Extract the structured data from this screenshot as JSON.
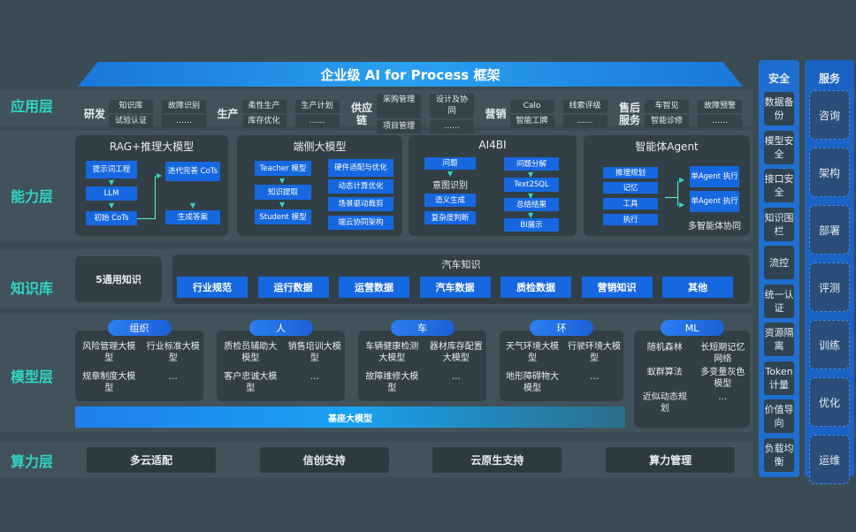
{
  "title": "企业级 AI for Process 框架",
  "layers": {
    "app": "应用层",
    "capability": "能力层",
    "knowledge": "知识库",
    "model": "模型层",
    "compute": "算力层"
  },
  "app_groups": [
    {
      "name": "研发",
      "items": [
        "知识库",
        "故障识别",
        "试验认证",
        "……"
      ]
    },
    {
      "name": "生产",
      "items": [
        "柔性生产",
        "生产计划",
        "库存优化",
        "……"
      ]
    },
    {
      "name": "供应链",
      "items": [
        "采购管理",
        "设计及协同",
        "项目管理",
        "……"
      ]
    },
    {
      "name": "营销",
      "items": [
        "Calo",
        "线索评级",
        "智能工牌",
        "……"
      ]
    },
    {
      "name": "售后服务",
      "items": [
        "车智见",
        "故障预警",
        "智能诊修",
        "……"
      ]
    }
  ],
  "capability": {
    "rag": {
      "title": "RAG+推理大模型",
      "items": [
        "提示词工程",
        "LLM",
        "初始 CoTs",
        "迭代完善 CoTs",
        "生成答案"
      ]
    },
    "edge": {
      "title": "端侧大模型",
      "left": [
        "Teacher 模型",
        "知识提取",
        "Student 模型"
      ],
      "right": [
        "硬件适配与优化",
        "动态计算优化",
        "场景驱动裁剪",
        "端云协同架构"
      ]
    },
    "ai4bi": {
      "title": "AI4BI",
      "left": [
        "问题",
        "意图识别",
        "语义生成",
        "复杂度判断"
      ],
      "right": [
        "问题分解",
        "Text2SQL",
        "总结结果",
        "BI展示"
      ]
    },
    "agent": {
      "title": "智能体Agent",
      "left": [
        "推理规划",
        "记忆",
        "工具",
        "执行"
      ],
      "right": [
        "单Agent 执行",
        "单Agent 执行"
      ],
      "caption": "多智能体协同"
    }
  },
  "knowledge": {
    "general": "5通用知识",
    "auto_title": "汽车知识",
    "auto_items": [
      "行业规范",
      "运行数据",
      "运营数据",
      "汽车数据",
      "质检数据",
      "营销知识",
      "其他"
    ]
  },
  "models": [
    {
      "tag": "组织",
      "items": [
        "风险管理大模型",
        "行业标准大模型",
        "规章制度大模型",
        "…"
      ]
    },
    {
      "tag": "人",
      "items": [
        "质检员辅助大模型",
        "销售培训大模型",
        "客户忠诚大模型",
        "…"
      ]
    },
    {
      "tag": "车",
      "items": [
        "车辆健康检测大模型",
        "器材库存配置大模型",
        "故障维修大模型",
        "…"
      ]
    },
    {
      "tag": "环",
      "items": [
        "天气环境大模型",
        "行驶环境大模型",
        "地形障碍物大模型",
        "…"
      ]
    },
    {
      "tag": "ML",
      "items": [
        "随机森林",
        "长短期记忆网络",
        "蚁群算法",
        "多变量灰色模型",
        "近似动态规划",
        "…"
      ]
    }
  ],
  "base_model": "基座大模型",
  "compute": [
    "多云适配",
    "信创支持",
    "云原生支持",
    "算力管理"
  ],
  "security": {
    "title": "安全",
    "items": [
      "数据备份",
      "模型安全",
      "接口安全",
      "知识围栏",
      "流控",
      "统一认证",
      "资源隔离",
      "Token计量",
      "价值导向",
      "负载均衡"
    ]
  },
  "service": {
    "title": "服务",
    "items": [
      "咨询",
      "架构",
      "部署",
      "评测",
      "训练",
      "优化",
      "运维"
    ]
  }
}
